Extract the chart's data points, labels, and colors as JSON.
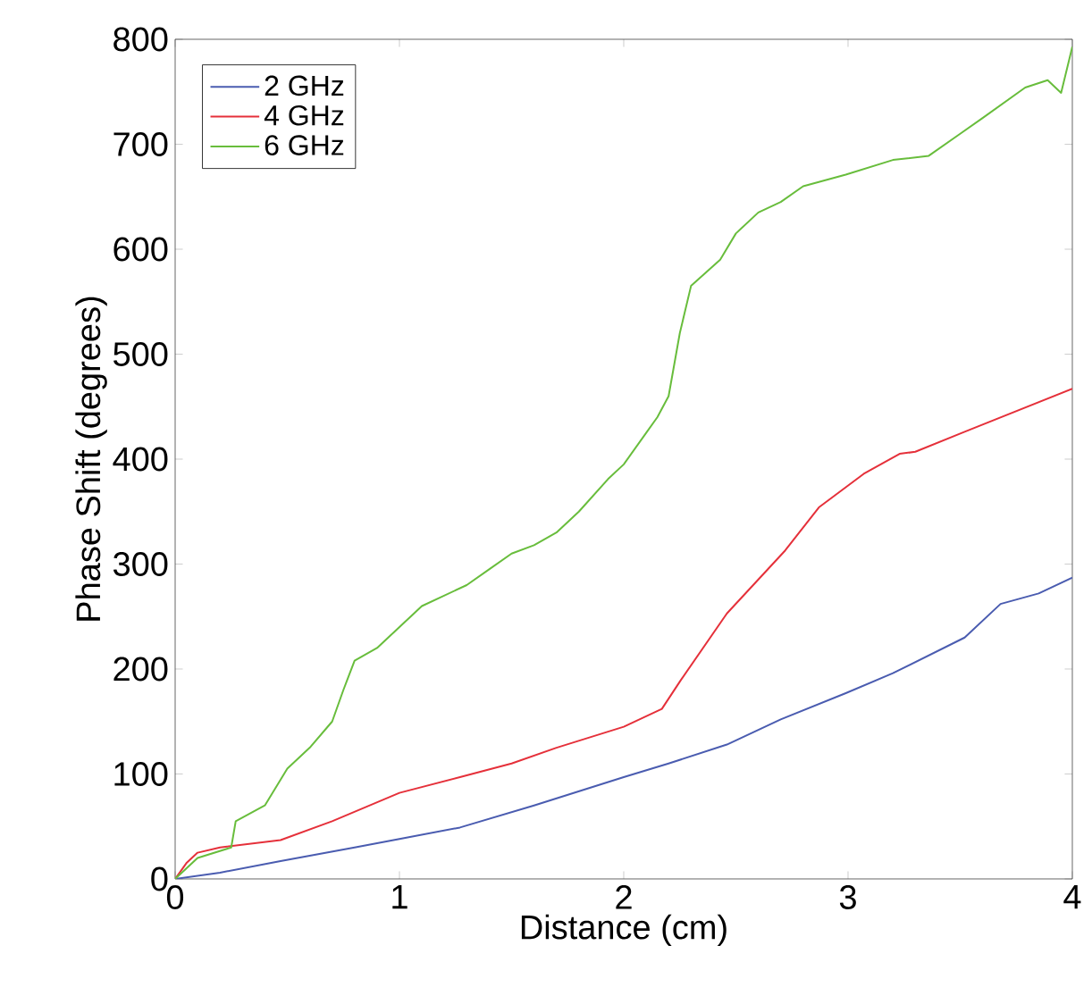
{
  "chart_data": {
    "type": "line",
    "xlabel": "Distance (cm)",
    "ylabel": "Phase Shift (degrees)",
    "xlim": [
      0,
      4
    ],
    "ylim": [
      0,
      800
    ],
    "xticks": [
      0,
      1,
      2,
      3,
      4
    ],
    "yticks": [
      0,
      100,
      200,
      300,
      400,
      500,
      600,
      700,
      800
    ],
    "grid": false,
    "legend": "top left",
    "line_style": "solid",
    "marker": "none",
    "series": [
      {
        "name": "2 GHz",
        "color": "#4a5cb0",
        "x": [
          0,
          0.2,
          0.47,
          0.8,
          1.0,
          1.27,
          1.6,
          2.0,
          2.2,
          2.46,
          2.7,
          2.99,
          3.2,
          3.52,
          3.68,
          3.85,
          4.0
        ],
        "values": [
          0,
          6,
          17,
          30,
          38,
          49,
          70,
          97,
          110,
          128,
          152,
          177,
          196,
          230,
          262,
          272,
          287
        ]
      },
      {
        "name": "4 GHz",
        "color": "#e5303a",
        "x": [
          0,
          0.05,
          0.1,
          0.2,
          0.47,
          0.7,
          1.0,
          1.27,
          1.5,
          1.7,
          2.0,
          2.17,
          2.25,
          2.46,
          2.72,
          2.87,
          3.07,
          3.23,
          3.3,
          3.52,
          4.0
        ],
        "values": [
          0,
          15,
          25,
          30,
          37,
          55,
          82,
          97,
          110,
          125,
          145,
          162,
          188,
          253,
          313,
          354,
          386,
          405,
          407,
          426,
          467
        ]
      },
      {
        "name": "6 GHz",
        "color": "#68bd3c",
        "x": [
          0,
          0.1,
          0.25,
          0.27,
          0.4,
          0.5,
          0.6,
          0.7,
          0.75,
          0.8,
          0.9,
          1.0,
          1.1,
          1.2,
          1.3,
          1.4,
          1.5,
          1.6,
          1.7,
          1.8,
          1.93,
          2.0,
          2.1,
          2.15,
          2.2,
          2.25,
          2.3,
          2.43,
          2.5,
          2.6,
          2.7,
          2.8,
          2.99,
          3.2,
          3.36,
          3.5,
          3.6,
          3.79,
          3.89,
          3.95,
          4.0
        ],
        "values": [
          0,
          20,
          30,
          55,
          70,
          105,
          125,
          150,
          180,
          208,
          220,
          240,
          260,
          270,
          280,
          295,
          310,
          318,
          330,
          350,
          381,
          395,
          425,
          440,
          460,
          520,
          565,
          590,
          615,
          635,
          645,
          660,
          671,
          685,
          689,
          710,
          725,
          754,
          761,
          749,
          793
        ]
      }
    ]
  }
}
